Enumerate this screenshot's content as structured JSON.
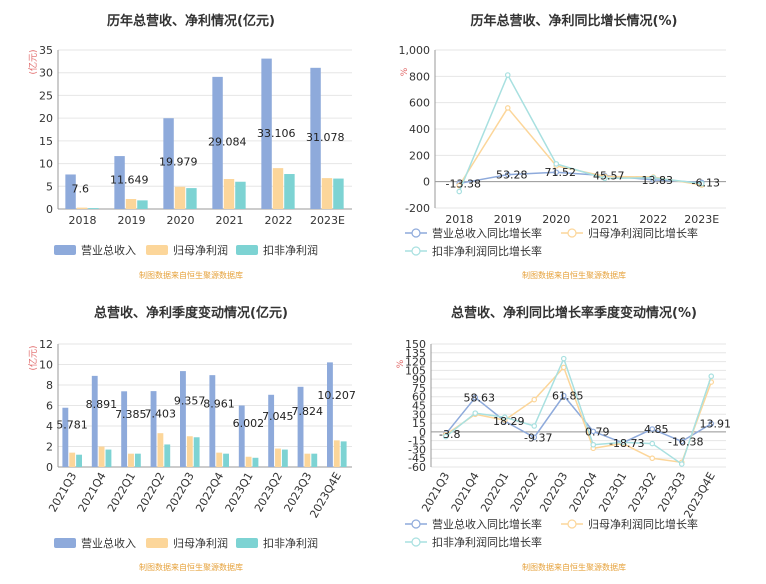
{
  "chart_data": [
    {
      "type": "bar",
      "title": "历年总营收、净利情况(亿元)",
      "ylabel": "(亿元)",
      "categories": [
        "2018",
        "2019",
        "2020",
        "2021",
        "2022",
        "2023E"
      ],
      "ylim": [
        0,
        35
      ],
      "yticks": [
        "0",
        "5",
        "10",
        "15",
        "20",
        "25",
        "30",
        "35"
      ],
      "series": [
        {
          "name": "营业总收入",
          "values": [
            7.6,
            11.649,
            19.979,
            29.084,
            33.106,
            31.078
          ],
          "color": "#8eaadb",
          "labels": [
            "7.6",
            "11.649",
            "19.979",
            "29.084",
            "33.106",
            "31.078"
          ]
        },
        {
          "name": "归母净利润",
          "values": [
            0.3,
            2.2,
            4.9,
            6.6,
            9.0,
            6.8
          ],
          "color": "#fcd69a"
        },
        {
          "name": "扣非净利润",
          "values": [
            0.2,
            1.9,
            4.6,
            6.0,
            7.7,
            6.7
          ],
          "color": "#7dd3d3"
        }
      ],
      "legend": "bottom",
      "source": "制图数据来自恒生聚源数据库"
    },
    {
      "type": "line",
      "title": "历年总营收、净利同比增长情况(%)",
      "ylabel": "%",
      "categories": [
        "2018",
        "2019",
        "2020",
        "2021",
        "2022",
        "2023E"
      ],
      "ylim": [
        -200,
        1000
      ],
      "yticks": [
        "-200",
        "0",
        "200",
        "400",
        "600",
        "800",
        "1,000"
      ],
      "series": [
        {
          "name": "营业总收入同比增长率",
          "values": [
            -13.38,
            53.28,
            71.52,
            45.57,
            13.83,
            -6.13
          ],
          "color": "#8eaadb",
          "labels": [
            "-13.38",
            "53.28",
            "71.52",
            "45.57",
            "13.83",
            "-6.13"
          ]
        },
        {
          "name": "归母净利润同比增长率",
          "values": [
            -30,
            560,
            120,
            40,
            35,
            -25
          ],
          "color": "#fcd69a"
        },
        {
          "name": "扣非净利润同比增长率",
          "values": [
            -75,
            810,
            135,
            25,
            30,
            -15
          ],
          "color": "#a8e0e0"
        }
      ],
      "legend": "bottom",
      "source": "制图数据来自恒生聚源数据库"
    },
    {
      "type": "bar",
      "title": "总营收、净利季度变动情况(亿元)",
      "ylabel": "(亿元)",
      "categories": [
        "2021Q3",
        "2021Q4",
        "2022Q1",
        "2022Q2",
        "2022Q3",
        "2022Q4",
        "2023Q1",
        "2023Q2",
        "2023Q3",
        "2023Q4E"
      ],
      "ylim": [
        0,
        12
      ],
      "yticks": [
        "0",
        "2",
        "4",
        "6",
        "8",
        "10",
        "12"
      ],
      "series": [
        {
          "name": "营业总收入",
          "values": [
            5.781,
            8.891,
            7.385,
            7.403,
            9.357,
            8.961,
            6.002,
            7.045,
            7.824,
            10.207
          ],
          "color": "#8eaadb",
          "labels": [
            "5.781",
            "8.891",
            "7.385",
            "7.403",
            "9.357",
            "8.961",
            "6.002",
            "7.045",
            "7.824",
            "10.207"
          ]
        },
        {
          "name": "归母净利润",
          "values": [
            1.4,
            2.0,
            1.3,
            3.3,
            3.0,
            1.4,
            1.0,
            1.8,
            1.3,
            2.6
          ],
          "color": "#fcd69a"
        },
        {
          "name": "扣非净利润",
          "values": [
            1.2,
            1.7,
            1.3,
            2.2,
            2.9,
            1.3,
            0.9,
            1.7,
            1.3,
            2.5
          ],
          "color": "#7dd3d3"
        }
      ],
      "legend": "bottom",
      "source": "制图数据来自恒生聚源数据库"
    },
    {
      "type": "line",
      "title": "总营收、净利同比增长率季度变动情况(%)",
      "ylabel": "%",
      "categories": [
        "2021Q3",
        "2021Q4",
        "2022Q1",
        "2022Q2",
        "2022Q3",
        "2022Q4",
        "2023Q1",
        "2023Q2",
        "2023Q3",
        "2023Q4E"
      ],
      "ylim": [
        -60,
        150
      ],
      "yticks": [
        "-60",
        "-45",
        "-30",
        "-15",
        "0",
        "15",
        "30",
        "45",
        "60",
        "75",
        "90",
        "105",
        "120",
        "135",
        "150"
      ],
      "series": [
        {
          "name": "营业总收入同比增长率",
          "values": [
            -3.8,
            58.63,
            18.29,
            -9.37,
            61.85,
            0.79,
            -18.73,
            4.85,
            -16.38,
            13.91
          ],
          "color": "#8eaadb",
          "labels": [
            "-3.8",
            "58.63",
            "18.29",
            "-9.37",
            "61.85",
            "0.79",
            "-18.73",
            "4.85",
            "-16.38",
            "13.91"
          ]
        },
        {
          "name": "归母净利润同比增长率",
          "values": [
            -5,
            30,
            20,
            55,
            110,
            -28,
            -20,
            -45,
            -52,
            85
          ],
          "color": "#fcd69a"
        },
        {
          "name": "扣非净利润同比增长率",
          "values": [
            -8,
            32,
            25,
            10,
            125,
            -22,
            -18,
            -20,
            -55,
            95
          ],
          "color": "#a8e0e0"
        }
      ],
      "legend": "bottom",
      "source": "制图数据来自恒生聚源数据库"
    }
  ]
}
